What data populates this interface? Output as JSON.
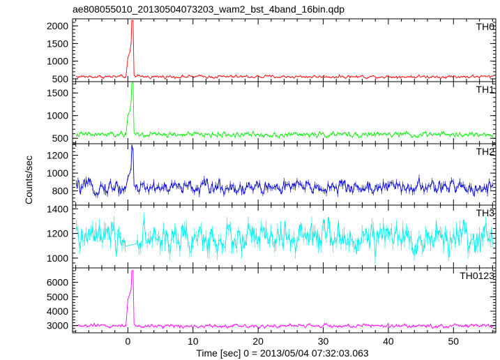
{
  "chart_data": {
    "type": "line",
    "title": "ae808055010_20130504073203_wam2_bst_4band_16bin.qdp",
    "xlabel": "Time [sec] 0 = 2013/05/04 07:32:03.063",
    "ylabel": "Counts/sec",
    "xlim": [
      -8.5,
      56.5
    ],
    "x_ticks": [
      0,
      10,
      20,
      30,
      40,
      50
    ],
    "x_tick_labels": [
      "0",
      "10",
      "20",
      "30",
      "40",
      "50"
    ],
    "grid": false,
    "panels": [
      {
        "name": "TH0",
        "color": "#ff0000",
        "ylim": [
          420,
          2200
        ],
        "y_ticks": [
          500,
          1000,
          1500,
          2000
        ],
        "y_tick_labels": [
          "500",
          "1000",
          "1500",
          "2000"
        ],
        "baseline": 560,
        "noise": 30,
        "burst": [
          [
            -0.3,
            560
          ],
          [
            0.0,
            1100
          ],
          [
            0.3,
            1250
          ],
          [
            0.5,
            1500
          ],
          [
            0.6,
            2150
          ],
          [
            0.8,
            2150
          ],
          [
            0.95,
            600
          ],
          [
            1.2,
            560
          ]
        ]
      },
      {
        "name": "TH1",
        "color": "#00ee00",
        "ylim": [
          380,
          1750
        ],
        "y_ticks": [
          500,
          1000,
          1500
        ],
        "y_tick_labels": [
          "500",
          "1000",
          "1500"
        ],
        "baseline": 580,
        "noise": 40,
        "burst": [
          [
            -0.3,
            580
          ],
          [
            0.0,
            1000
          ],
          [
            0.3,
            1100
          ],
          [
            0.5,
            1300
          ],
          [
            0.6,
            1720
          ],
          [
            0.8,
            1720
          ],
          [
            0.95,
            620
          ],
          [
            1.2,
            580
          ]
        ]
      },
      {
        "name": "TH2",
        "color": "#0000dd",
        "ylim": [
          640,
          1330
        ],
        "y_ticks": [
          800,
          1000,
          1200
        ],
        "y_tick_labels": [
          "800",
          "1000",
          "1200"
        ],
        "baseline": 840,
        "noise": 55,
        "burst": [
          [
            -0.3,
            840
          ],
          [
            0.0,
            950
          ],
          [
            0.3,
            1000
          ],
          [
            0.5,
            1060
          ],
          [
            0.6,
            1320
          ],
          [
            0.8,
            1250
          ],
          [
            0.95,
            860
          ],
          [
            1.2,
            840
          ]
        ]
      },
      {
        "name": "TH3",
        "color": "#00eeee",
        "ylim": [
          920,
          1430
        ],
        "y_ticks": [
          1000,
          1200,
          1400
        ],
        "y_tick_labels": [
          "1000",
          "1200",
          "1400"
        ],
        "baseline": 1160,
        "noise": 85,
        "burst": []
      },
      {
        "name": "TH0123",
        "color": "#ff00ff",
        "ylim": [
          2500,
          7000
        ],
        "y_ticks": [
          3000,
          4000,
          5000,
          6000
        ],
        "y_tick_labels": [
          "3000",
          "4000",
          "5000",
          "6000"
        ],
        "baseline": 2980,
        "noise": 90,
        "burst": [
          [
            -0.3,
            2980
          ],
          [
            0.0,
            4800
          ],
          [
            0.3,
            5200
          ],
          [
            0.5,
            5500
          ],
          [
            0.6,
            6800
          ],
          [
            0.8,
            6800
          ],
          [
            0.95,
            3100
          ],
          [
            1.2,
            2980
          ]
        ]
      }
    ]
  }
}
